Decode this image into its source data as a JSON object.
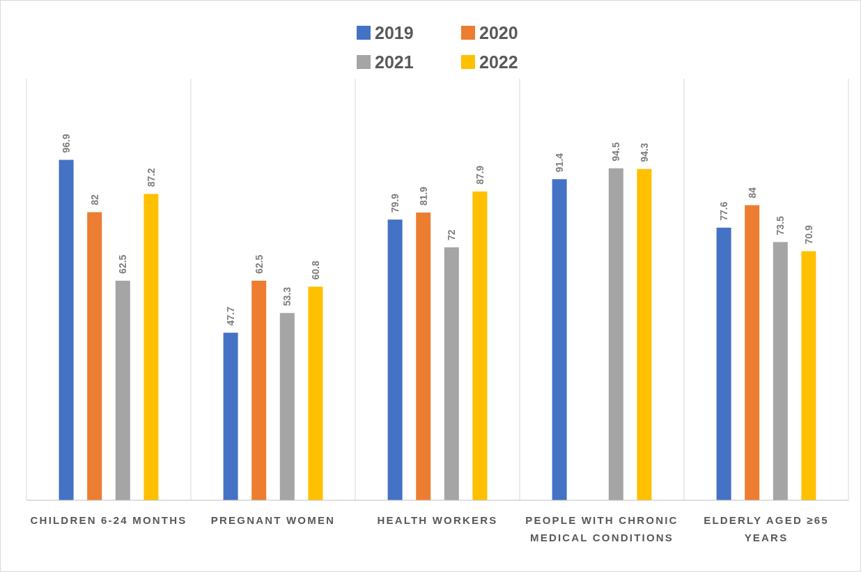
{
  "chart_data": {
    "type": "bar",
    "categories": [
      "CHILDREN 6-24 MONTHS",
      "PREGNANT WOMEN",
      "HEALTH WORKERS",
      "PEOPLE WITH CHRONIC MEDICAL CONDITIONS",
      "ELDERLY AGED ≥65 YEARS"
    ],
    "series": [
      {
        "name": "2019",
        "color": "#4472c4",
        "values": [
          96.9,
          47.7,
          79.9,
          91.4,
          77.6
        ]
      },
      {
        "name": "2020",
        "color": "#ed7d31",
        "values": [
          82,
          62.5,
          81.9,
          null,
          84
        ]
      },
      {
        "name": "2021",
        "color": "#a5a5a5",
        "values": [
          62.5,
          53.3,
          72,
          94.5,
          73.5
        ]
      },
      {
        "name": "2022",
        "color": "#ffc000",
        "values": [
          87.2,
          60.8,
          87.9,
          94.3,
          70.9
        ]
      }
    ],
    "ylim": [
      0,
      120
    ],
    "data_labels": true,
    "grid": "x",
    "legend": "top"
  }
}
